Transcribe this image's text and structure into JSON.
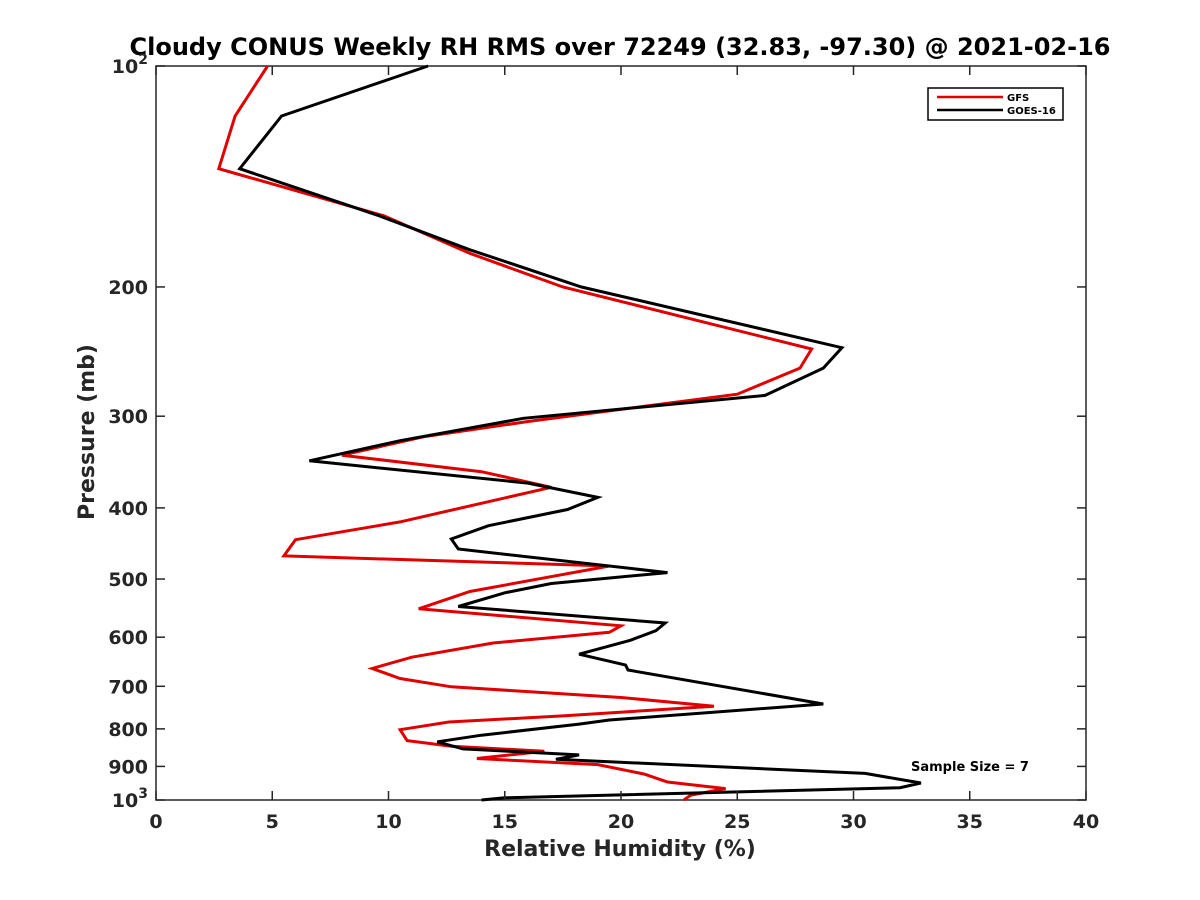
{
  "chart_data": {
    "type": "line",
    "title": "Cloudy CONUS Weekly RH RMS over 72249 (32.83, -97.30) @ 2021-02-16",
    "xlabel": "Relative Humidity (%)",
    "ylabel": "Pressure (mb)",
    "xlim": [
      0,
      40
    ],
    "ylim": [
      100,
      1000
    ],
    "y_scale": "log",
    "y_reversed": true,
    "x_ticks": [
      0,
      5,
      10,
      15,
      20,
      25,
      30,
      35,
      40
    ],
    "y_ticks": [
      {
        "value": 100,
        "label": "10",
        "sup": "2"
      },
      {
        "value": 200,
        "label": "200",
        "sup": ""
      },
      {
        "value": 300,
        "label": "300",
        "sup": ""
      },
      {
        "value": 400,
        "label": "400",
        "sup": ""
      },
      {
        "value": 500,
        "label": "500",
        "sup": ""
      },
      {
        "value": 600,
        "label": "600",
        "sup": ""
      },
      {
        "value": 700,
        "label": "700",
        "sup": ""
      },
      {
        "value": 800,
        "label": "800",
        "sup": ""
      },
      {
        "value": 900,
        "label": "900",
        "sup": ""
      },
      {
        "value": 1000,
        "label": "10",
        "sup": "3"
      }
    ],
    "grid": false,
    "legend": "top-right",
    "annotation": "Sample Size = 7",
    "series": [
      {
        "name": "GFS",
        "color": "#e00000",
        "points": [
          [
            4.8,
            100
          ],
          [
            3.4,
            117
          ],
          [
            2.7,
            138
          ],
          [
            9.8,
            160
          ],
          [
            13.5,
            180
          ],
          [
            17.5,
            200
          ],
          [
            28.2,
            243
          ],
          [
            27.7,
            258
          ],
          [
            25.0,
            280
          ],
          [
            16.0,
            305
          ],
          [
            11.5,
            320
          ],
          [
            8.0,
            339
          ],
          [
            14.0,
            357
          ],
          [
            17.0,
            375
          ],
          [
            10.5,
            418
          ],
          [
            6.0,
            442
          ],
          [
            5.5,
            465
          ],
          [
            19.5,
            480
          ],
          [
            13.5,
            520
          ],
          [
            11.3,
            549
          ],
          [
            20.0,
            579
          ],
          [
            19.5,
            591
          ],
          [
            14.5,
            611
          ],
          [
            11.0,
            639
          ],
          [
            9.3,
            662
          ],
          [
            10.5,
            683
          ],
          [
            12.7,
            701
          ],
          [
            20.0,
            725
          ],
          [
            24.0,
            745
          ],
          [
            17.5,
            768
          ],
          [
            12.6,
            783
          ],
          [
            10.5,
            802
          ],
          [
            10.8,
            830
          ],
          [
            12.7,
            845
          ],
          [
            16.7,
            858
          ],
          [
            13.8,
            878
          ],
          [
            19.0,
            895
          ],
          [
            21.0,
            922
          ],
          [
            22.0,
            945
          ],
          [
            24.5,
            965
          ],
          [
            23.0,
            985
          ],
          [
            22.7,
            1000
          ]
        ]
      },
      {
        "name": "GOES-16",
        "color": "#000000",
        "points": [
          [
            11.7,
            100
          ],
          [
            5.4,
            117
          ],
          [
            3.6,
            138
          ],
          [
            9.6,
            160
          ],
          [
            13.5,
            178
          ],
          [
            18.3,
            200
          ],
          [
            29.5,
            242
          ],
          [
            28.7,
            258
          ],
          [
            26.2,
            281
          ],
          [
            15.8,
            302
          ],
          [
            10.5,
            324
          ],
          [
            6.6,
            345
          ],
          [
            16.0,
            370
          ],
          [
            19.0,
            387
          ],
          [
            17.7,
            402
          ],
          [
            14.3,
            423
          ],
          [
            12.7,
            441
          ],
          [
            13.0,
            455
          ],
          [
            22.0,
            490
          ],
          [
            17.0,
            507
          ],
          [
            15.0,
            522
          ],
          [
            13.0,
            545
          ],
          [
            21.9,
            574
          ],
          [
            21.5,
            588
          ],
          [
            20.4,
            606
          ],
          [
            18.2,
            633
          ],
          [
            20.2,
            655
          ],
          [
            20.3,
            665
          ],
          [
            28.7,
            740
          ],
          [
            19.5,
            778
          ],
          [
            18.2,
            788
          ],
          [
            14.0,
            816
          ],
          [
            12.1,
            833
          ],
          [
            13.2,
            852
          ],
          [
            18.2,
            868
          ],
          [
            17.2,
            880
          ],
          [
            30.5,
            920
          ],
          [
            32.9,
            948
          ],
          [
            32.0,
            962
          ],
          [
            15.0,
            993
          ],
          [
            14.0,
            1000
          ]
        ]
      }
    ]
  }
}
